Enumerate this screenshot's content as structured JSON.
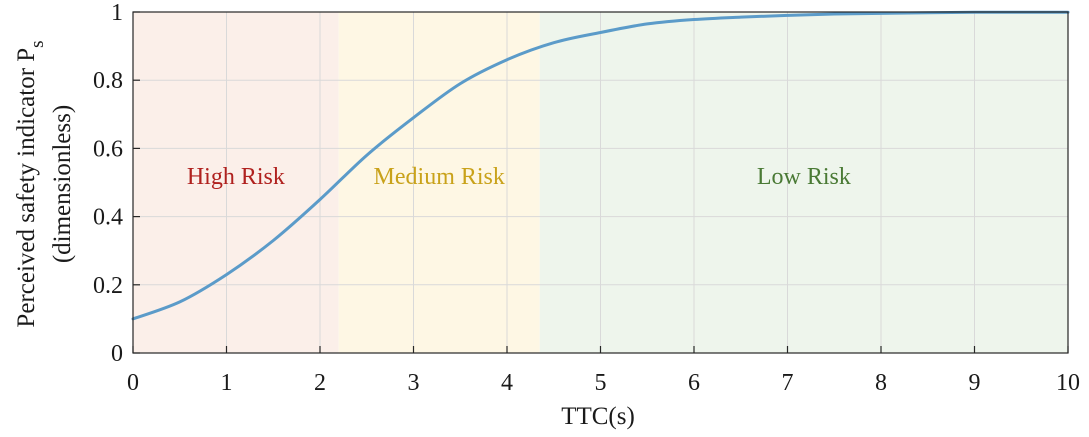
{
  "chart_data": {
    "type": "line",
    "xlabel": "TTC(s)",
    "ylabel_line1": "Perceived safety indicator P",
    "ylabel_subscript": "s",
    "ylabel_line2": "(dimensionless)",
    "xlim": [
      0,
      10
    ],
    "ylim": [
      0,
      1
    ],
    "grid": true,
    "x_ticks": [
      0,
      1,
      2,
      3,
      4,
      5,
      6,
      7,
      8,
      9,
      10
    ],
    "y_ticks": [
      0,
      0.2,
      0.4,
      0.6,
      0.8,
      1
    ],
    "y_tick_labels": [
      "0",
      "0.2",
      "0.4",
      "0.6",
      "0.8",
      "1"
    ],
    "regions": [
      {
        "label": "High Risk",
        "x_start": 0,
        "x_end": 2.2,
        "fill_color": "#fbefe9",
        "text_color": "#b0211e"
      },
      {
        "label": "Medium Risk",
        "x_start": 2.2,
        "x_end": 4.35,
        "fill_color": "#fef7e4",
        "text_color": "#c9a21a"
      },
      {
        "label": "Low Risk",
        "x_start": 4.35,
        "x_end": 10,
        "fill_color": "#eef5ec",
        "text_color": "#4a7a35"
      }
    ],
    "series": [
      {
        "color": "#5b9bc9",
        "x": [
          0,
          0.5,
          1,
          1.5,
          2,
          2.5,
          3,
          3.5,
          4,
          4.5,
          5,
          5.5,
          6,
          6.5,
          7,
          7.5,
          8,
          8.5,
          9,
          9.5,
          10
        ],
        "y": [
          0.1,
          0.15,
          0.23,
          0.33,
          0.45,
          0.58,
          0.69,
          0.79,
          0.86,
          0.91,
          0.94,
          0.965,
          0.978,
          0.985,
          0.99,
          0.994,
          0.996,
          0.998,
          0.999,
          0.999,
          0.999
        ]
      }
    ]
  }
}
